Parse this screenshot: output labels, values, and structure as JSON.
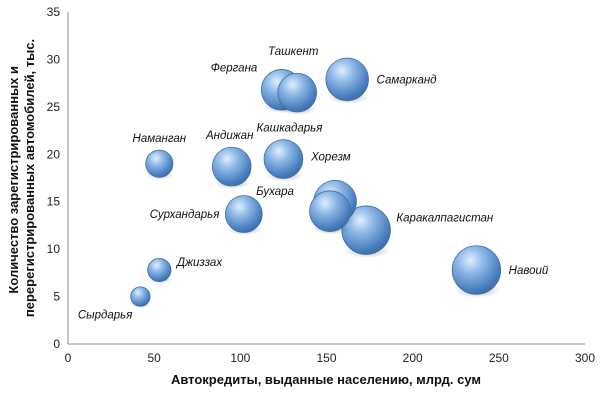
{
  "chart_data": {
    "type": "bubble",
    "title": "",
    "xlabel": "Автокредиты,  выданные населению, млрд. сум",
    "ylabel_lines": [
      "Количество зарегистрированных и",
      "перерегистрированных автомобилей, тыс."
    ],
    "xlim": [
      0,
      300
    ],
    "ylim": [
      0,
      35
    ],
    "xticks": [
      0,
      50,
      100,
      150,
      200,
      250,
      300
    ],
    "yticks": [
      0,
      5,
      10,
      15,
      20,
      25,
      30,
      35
    ],
    "grid": false,
    "legend": "none",
    "bubble_color": "#5b8fc9",
    "points": [
      {
        "label": "Сырдарья",
        "x": 42,
        "y": 5.0,
        "size": 10
      },
      {
        "label": "Джиззах",
        "x": 53,
        "y": 7.8,
        "size": 12
      },
      {
        "label": "Наманган",
        "x": 53,
        "y": 19.0,
        "size": 14
      },
      {
        "label": "Сурхандарья",
        "x": 102,
        "y": 13.7,
        "size": 19
      },
      {
        "label": "Андижан",
        "x": 95,
        "y": 18.7,
        "size": 20
      },
      {
        "label": "Кашкадарья",
        "x": 125,
        "y": 19.5,
        "size": 20
      },
      {
        "label": "Фергана",
        "x": 124,
        "y": 26.8,
        "size": 21
      },
      {
        "label": "Ташкент",
        "x": 133,
        "y": 26.5,
        "size": 20
      },
      {
        "label": "Самарканд",
        "x": 162,
        "y": 27.9,
        "size": 22
      },
      {
        "label": "Хорезм",
        "x": 155,
        "y": 15.0,
        "size": 22
      },
      {
        "label": "Бухара",
        "x": 152,
        "y": 14.0,
        "size": 21
      },
      {
        "label": "Каракалпагистан",
        "x": 173,
        "y": 12.0,
        "size": 25
      },
      {
        "label": "Навоий",
        "x": 237,
        "y": 7.8,
        "size": 25
      }
    ]
  }
}
